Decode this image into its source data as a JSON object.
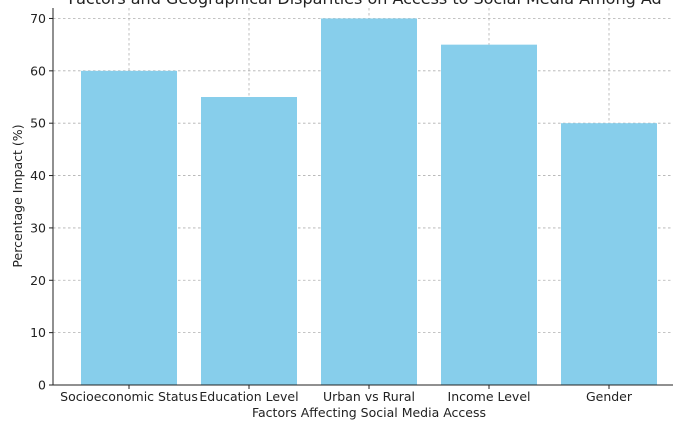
{
  "chart_data": {
    "type": "bar",
    "title": "Factors and Geographical Disparities on Access to Social Media Among Ad",
    "xlabel": "Factors Affecting Social Media Access",
    "ylabel": "Percentage Impact (%)",
    "categories": [
      "Socioeconomic Status",
      "Education Level",
      "Urban vs Rural",
      "Income Level",
      "Gender"
    ],
    "values": [
      60,
      55,
      70,
      65,
      50
    ],
    "ylim": [
      0,
      72
    ],
    "yticks": [
      0,
      10,
      20,
      30,
      40,
      50,
      60,
      70
    ],
    "grid": true,
    "bar_color": "#87ceeb"
  }
}
